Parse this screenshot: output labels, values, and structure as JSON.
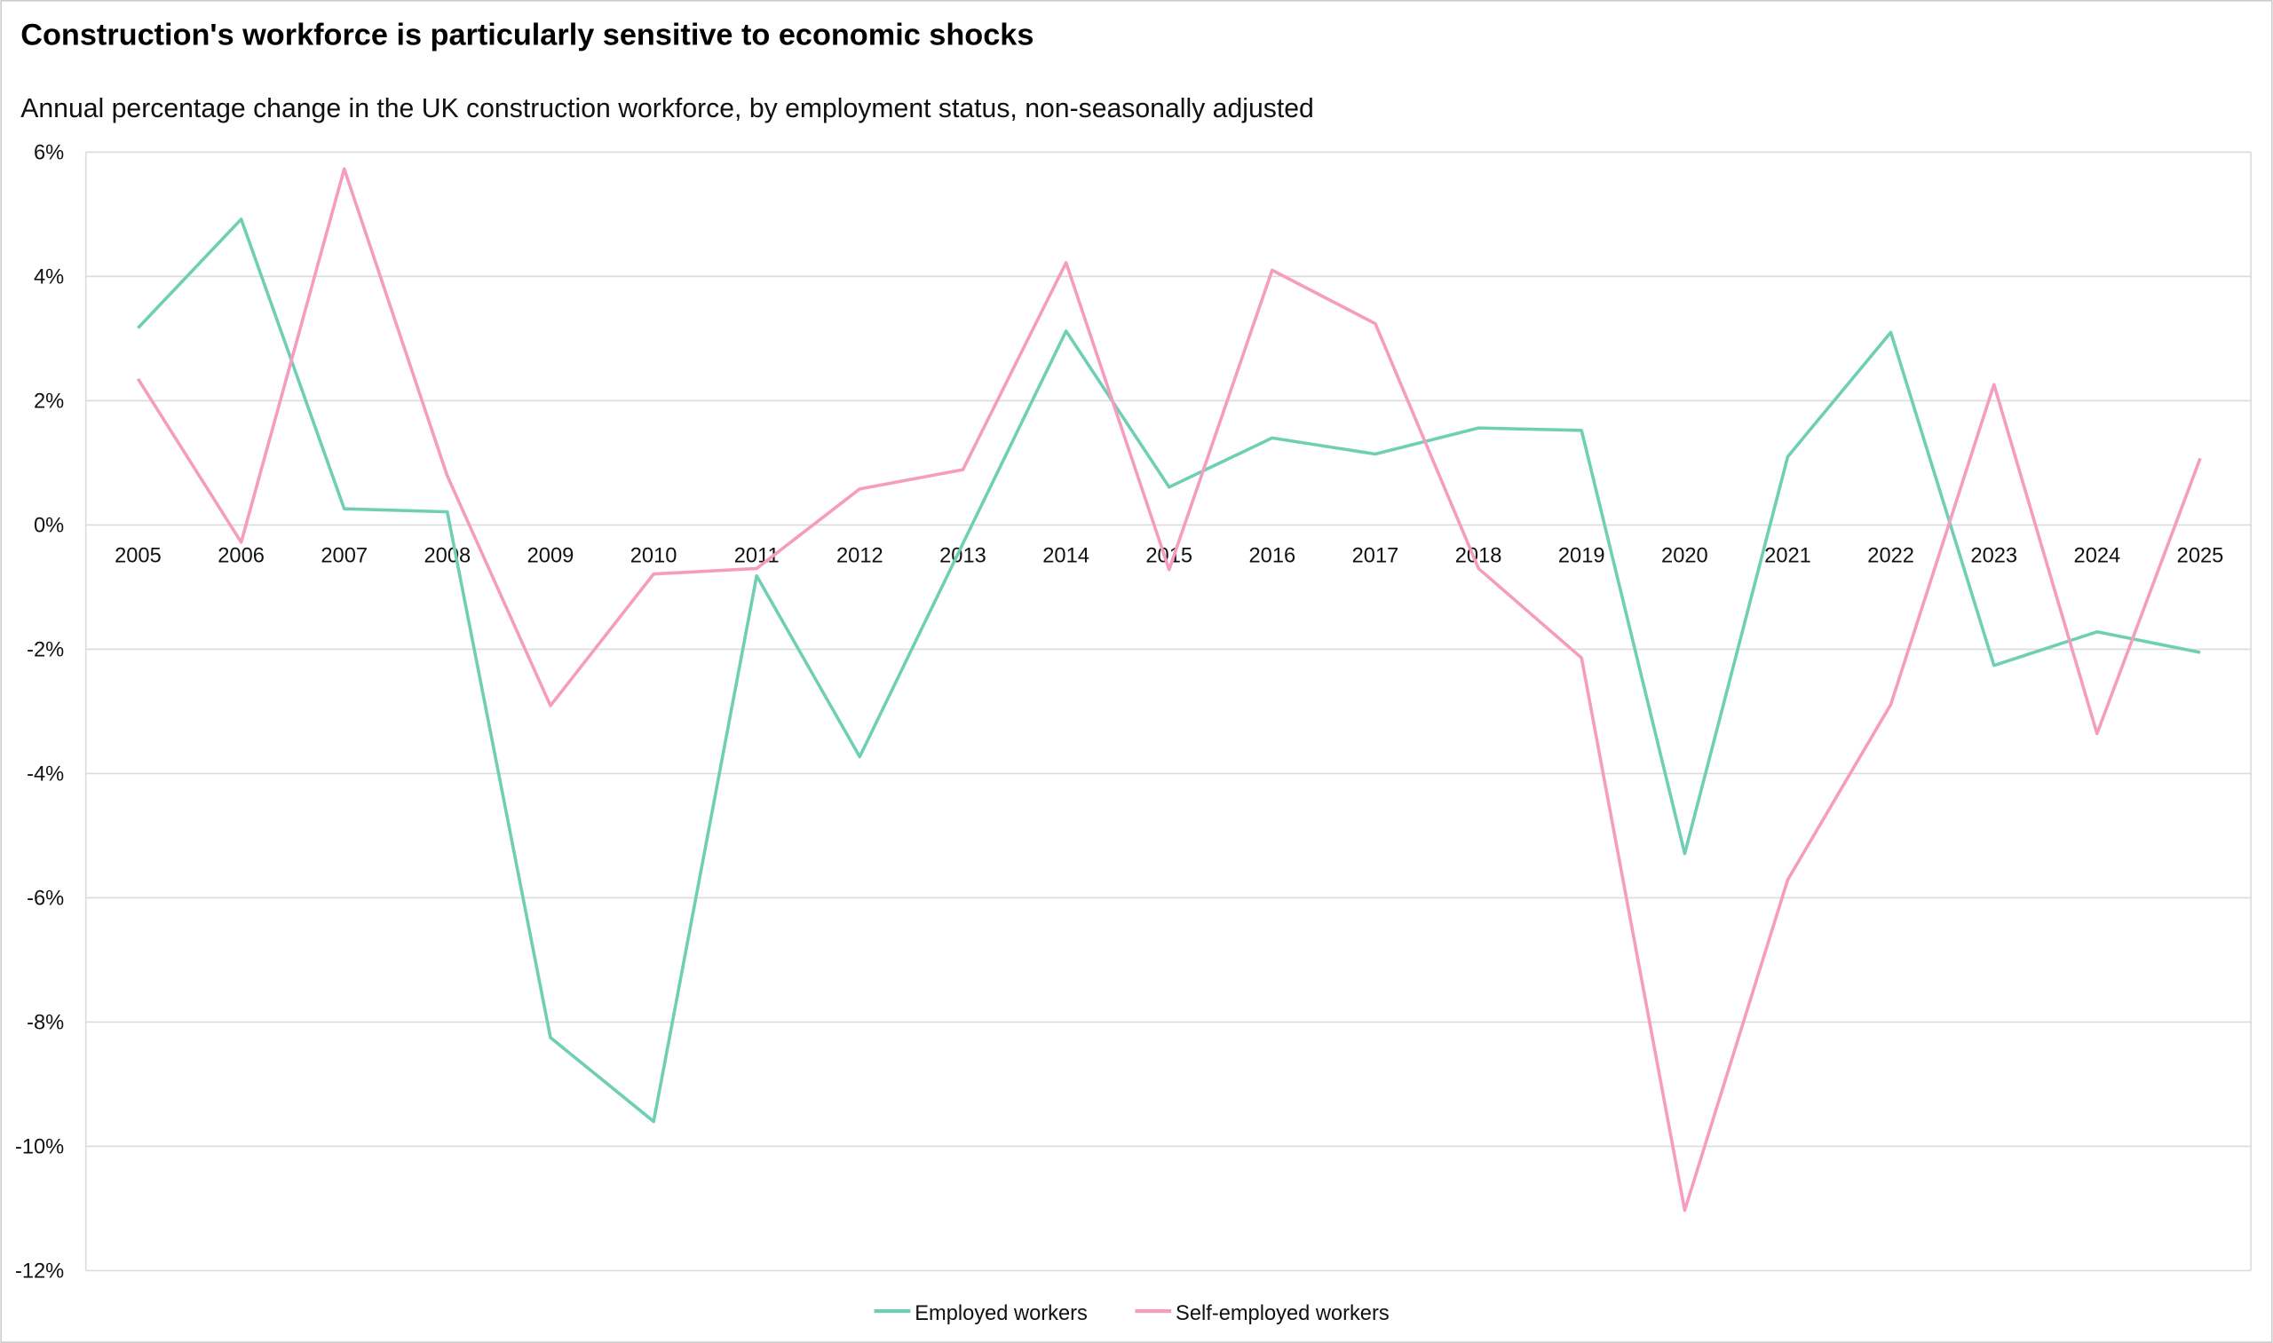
{
  "chart_data": {
    "type": "line",
    "title": "Construction's workforce is particularly sensitive to economic shocks",
    "subtitle": "Annual percentage change in the UK construction workforce, by employment status, non-seasonally adjusted",
    "xlabel": "",
    "ylabel": "",
    "ylim": [
      -12,
      6
    ],
    "yticks": [
      6,
      4,
      2,
      0,
      -2,
      -4,
      -6,
      -8,
      -10,
      -12
    ],
    "ytick_labels": [
      "6%",
      "4%",
      "2%",
      "0%",
      "-2%",
      "-4%",
      "-6%",
      "-8%",
      "-10%",
      "-12%"
    ],
    "grid": true,
    "legend_position": "bottom",
    "categories": [
      "2005",
      "2006",
      "2007",
      "2008",
      "2009",
      "2010",
      "2011",
      "2012",
      "2013",
      "2014",
      "2015",
      "2016",
      "2017",
      "2018",
      "2019",
      "2020",
      "2021",
      "2022",
      "2023",
      "2024",
      "2025"
    ],
    "series": [
      {
        "name": "Employed workers",
        "color": "#6fcfb5",
        "values": [
          3.17,
          4.92,
          0.26,
          0.21,
          -8.25,
          -9.6,
          -0.82,
          -3.73,
          -0.3,
          3.12,
          0.61,
          1.4,
          1.14,
          1.56,
          1.52,
          -5.29,
          1.1,
          3.1,
          -2.26,
          -1.72,
          -2.05
        ]
      },
      {
        "name": "Self-employed workers",
        "color": "#f59cbf",
        "values": [
          2.35,
          -0.28,
          5.73,
          0.79,
          -2.91,
          -0.79,
          -0.7,
          0.58,
          0.89,
          4.22,
          -0.72,
          4.1,
          3.24,
          -0.7,
          -2.14,
          -11.03,
          -5.71,
          -2.89,
          2.26,
          -3.36,
          1.07
        ]
      }
    ]
  }
}
